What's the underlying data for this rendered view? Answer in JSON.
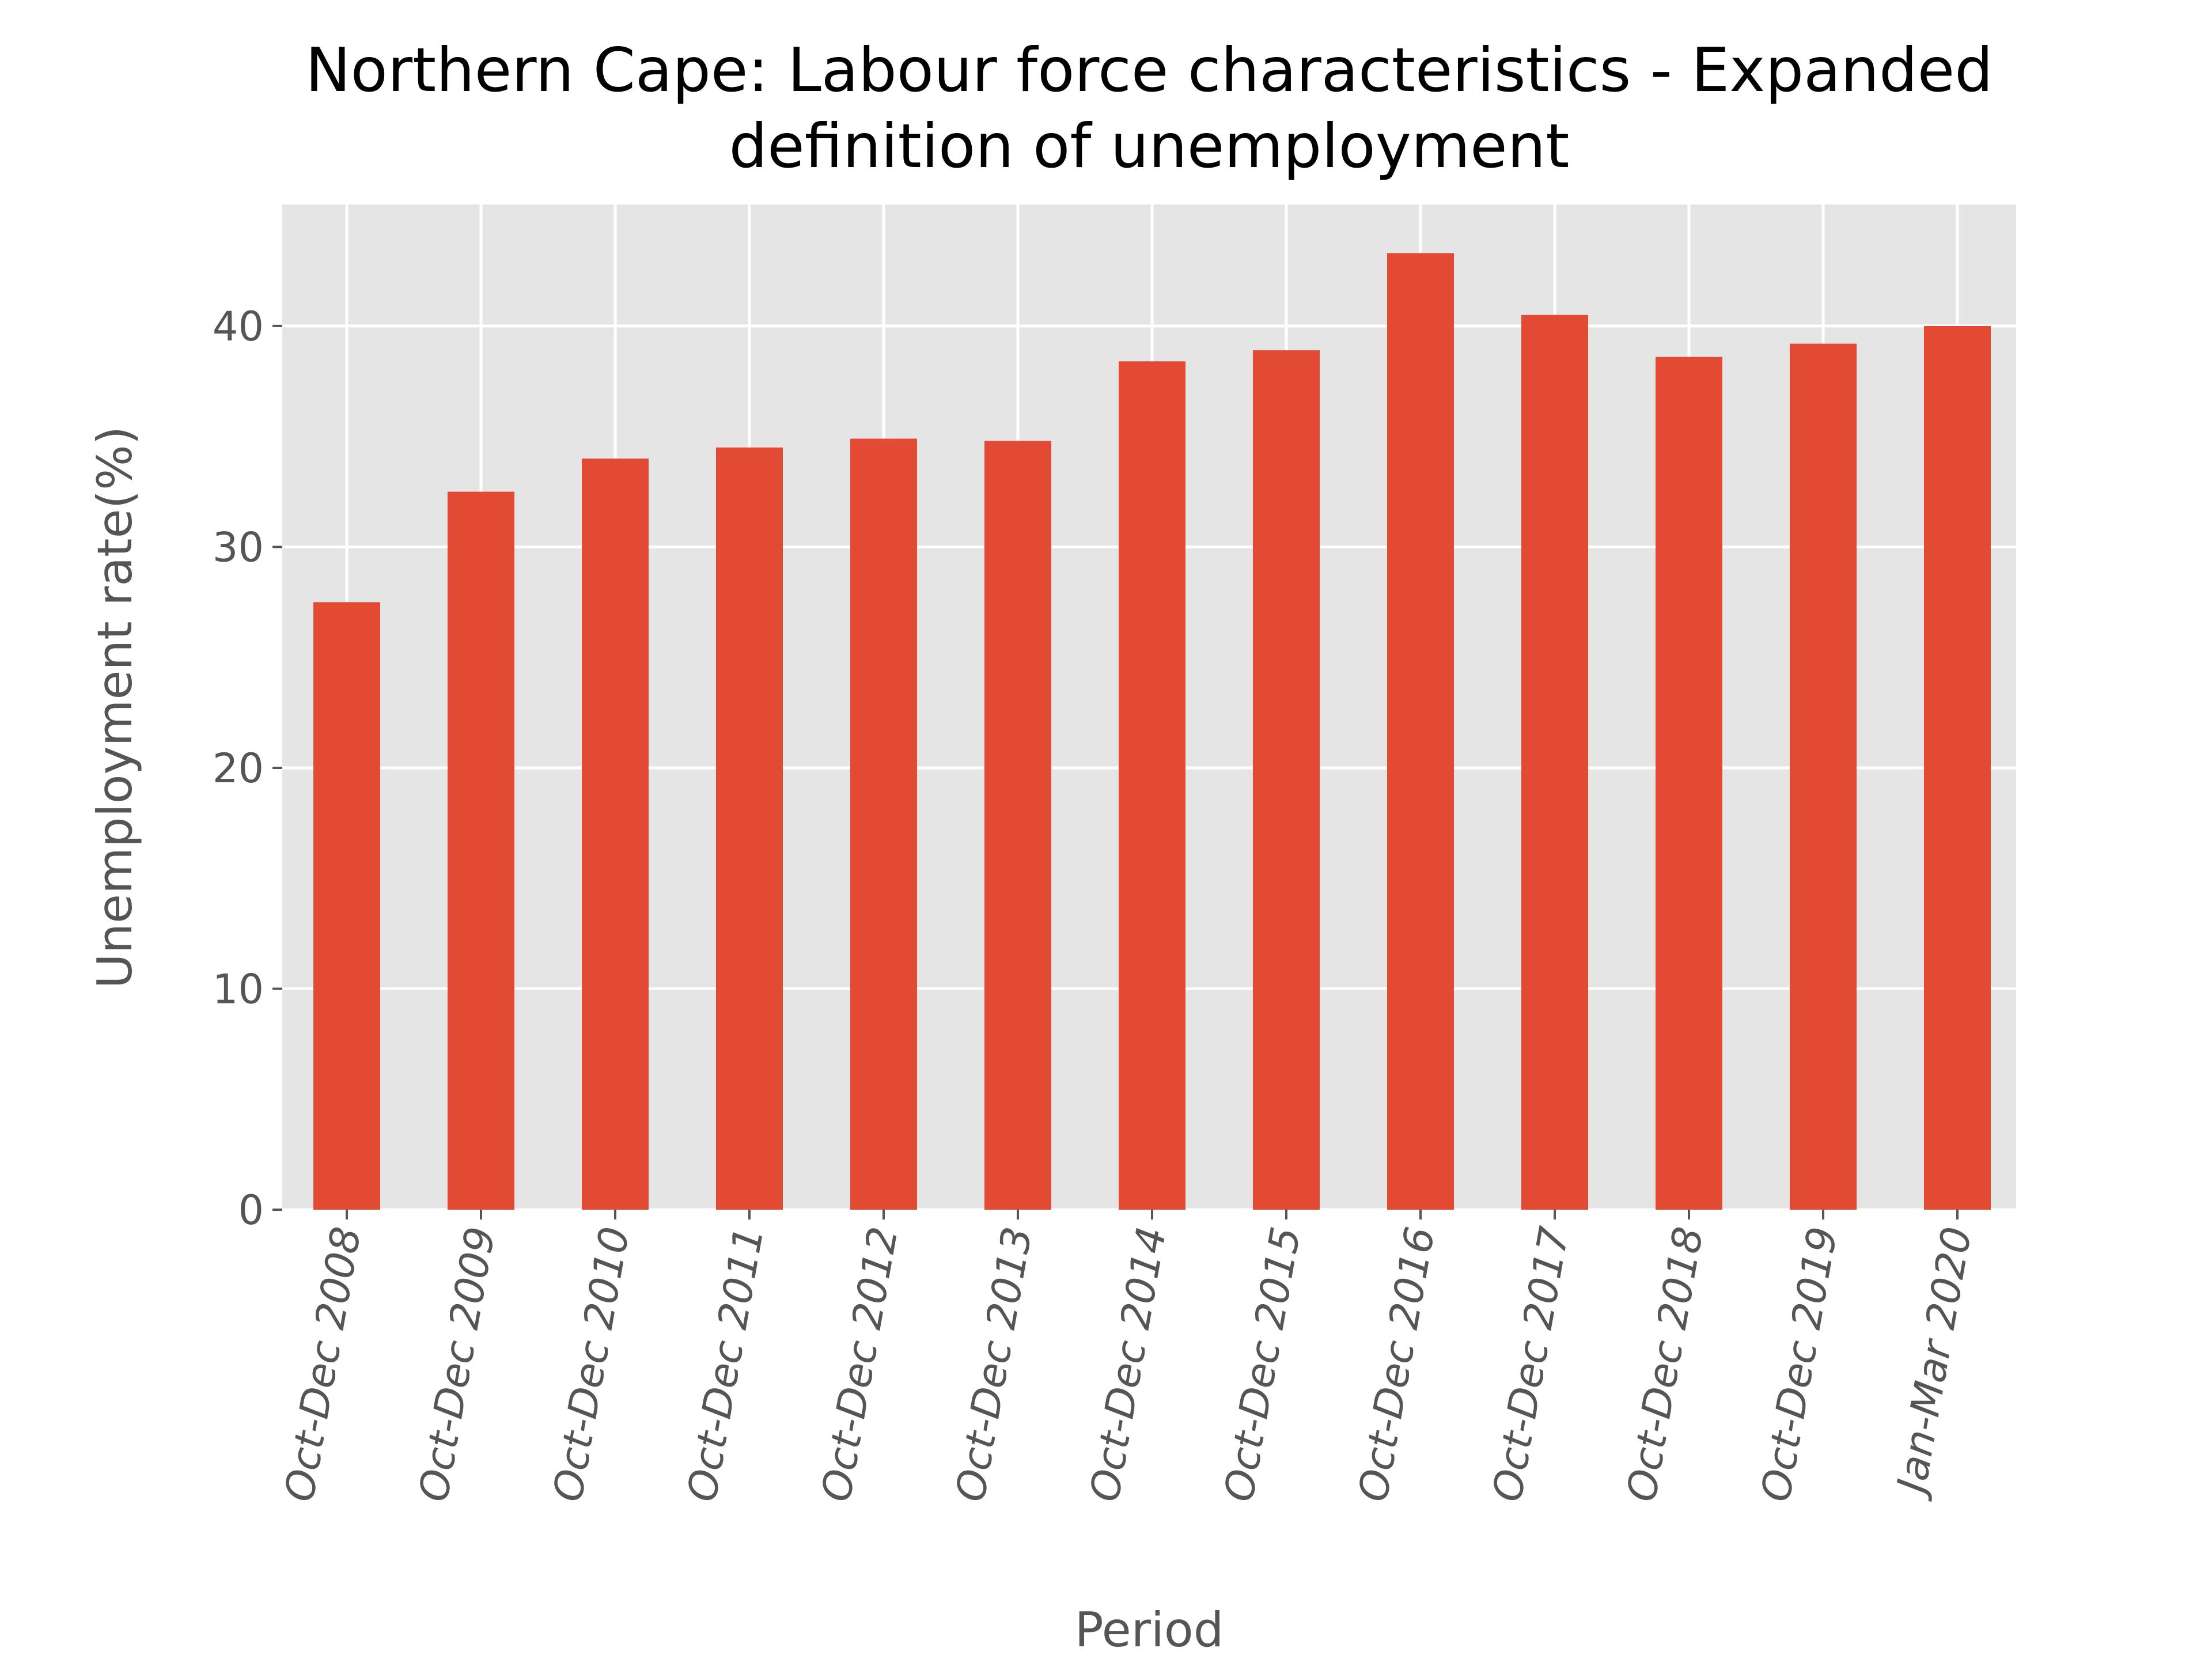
{
  "chart_data": {
    "type": "bar",
    "title": "Northern Cape: Labour force characteristics - Expanded definition of unemployment",
    "title_lines": [
      "Northern Cape: Labour force characteristics - Expanded",
      "definition of unemployment"
    ],
    "xlabel": "Period",
    "ylabel": "Unemployment rate(%)",
    "categories": [
      "Oct-Dec 2008",
      "Oct-Dec 2009",
      "Oct-Dec 2010",
      "Oct-Dec 2011",
      "Oct-Dec 2012",
      "Oct-Dec 2013",
      "Oct-Dec 2014",
      "Oct-Dec 2015",
      "Oct-Dec 2016",
      "Oct-Dec 2017",
      "Oct-Dec 2018",
      "Oct-Dec 2019",
      "Jan-Mar 2020"
    ],
    "values": [
      27.5,
      32.5,
      34.0,
      34.5,
      34.9,
      34.8,
      38.4,
      38.9,
      43.3,
      40.5,
      38.6,
      39.2,
      40.0
    ],
    "ylim": [
      0,
      45.5
    ],
    "yticks": [
      0,
      10,
      20,
      30,
      40
    ],
    "grid": true,
    "legend": "none",
    "colors": {
      "bar": "#E24A33",
      "plot_background": "#E5E5E5",
      "grid": "#FFFFFF",
      "tick_text": "#555555"
    }
  }
}
